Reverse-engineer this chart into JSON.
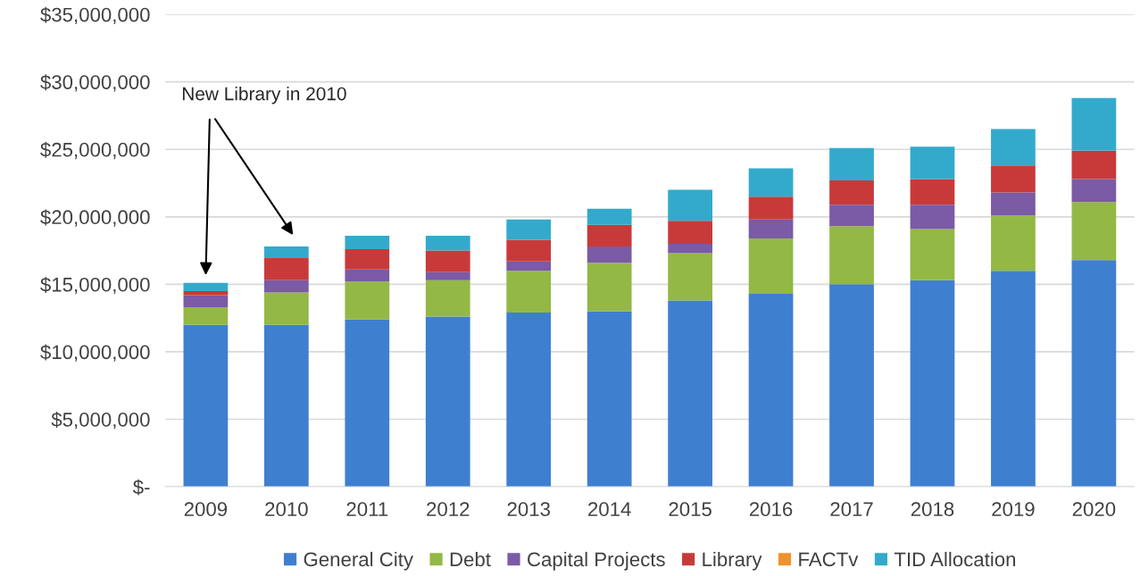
{
  "chart_data": {
    "type": "bar",
    "stacked": true,
    "grid": "y",
    "legend": "bottom",
    "categories": [
      "2009",
      "2010",
      "2011",
      "2012",
      "2013",
      "2014",
      "2015",
      "2016",
      "2017",
      "2018",
      "2019",
      "2020"
    ],
    "series": [
      {
        "name": "General City",
        "color": "#3f7fd0",
        "values": [
          12000000,
          12000000,
          12400000,
          12600000,
          12900000,
          13000000,
          13800000,
          14300000,
          15000000,
          15300000,
          16000000,
          16800000
        ]
      },
      {
        "name": "Debt",
        "color": "#93b845",
        "values": [
          1300000,
          2400000,
          2800000,
          2700000,
          3100000,
          3600000,
          3500000,
          4100000,
          4300000,
          3800000,
          4100000,
          4300000
        ]
      },
      {
        "name": "Capital Projects",
        "color": "#7b5aa6",
        "values": [
          900000,
          900000,
          900000,
          600000,
          700000,
          1200000,
          700000,
          1400000,
          1600000,
          1800000,
          1700000,
          1700000
        ]
      },
      {
        "name": "Library",
        "color": "#c83a3a",
        "values": [
          300000,
          1700000,
          1500000,
          1600000,
          1600000,
          1600000,
          1700000,
          1700000,
          1800000,
          1900000,
          2000000,
          2100000
        ]
      },
      {
        "name": "FACTv",
        "color": "#f0922b",
        "values": [
          0,
          0,
          0,
          0,
          0,
          0,
          0,
          0,
          0,
          0,
          0,
          0
        ]
      },
      {
        "name": "TID Allocation",
        "color": "#33aacc",
        "values": [
          600000,
          800000,
          1000000,
          1100000,
          1500000,
          1200000,
          2300000,
          2100000,
          2400000,
          2400000,
          2700000,
          3900000
        ]
      }
    ],
    "ylim": [
      0,
      35000000
    ],
    "yticks": [
      {
        "value": 0,
        "label": "$-"
      },
      {
        "value": 5000000,
        "label": "$5,000,000"
      },
      {
        "value": 10000000,
        "label": "$10,000,000"
      },
      {
        "value": 15000000,
        "label": "$15,000,000"
      },
      {
        "value": 20000000,
        "label": "$20,000,000"
      },
      {
        "value": 25000000,
        "label": "$25,000,000"
      },
      {
        "value": 30000000,
        "label": "$30,000,000"
      },
      {
        "value": 35000000,
        "label": "$35,000,000"
      }
    ],
    "annotations": [
      "New Library in 2010"
    ]
  }
}
